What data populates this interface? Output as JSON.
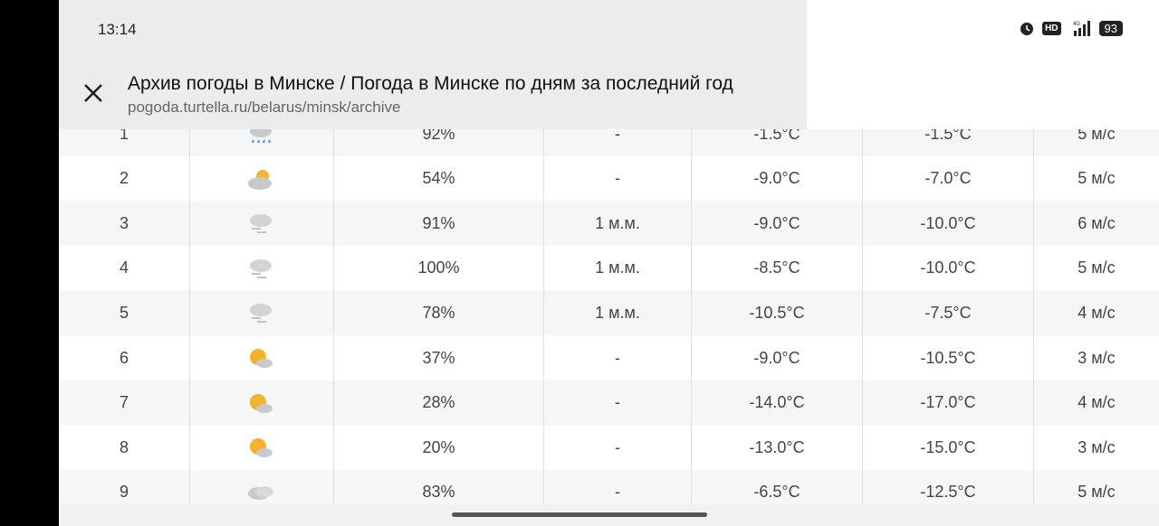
{
  "status_bar": {
    "time": "13:14",
    "icons": [
      "alarm-icon",
      "hd-icon",
      "4g-signal-icon"
    ],
    "battery": "93"
  },
  "browser": {
    "title": "Архив погоды в Минске / Погода в Минске по дням за последний год",
    "url": "pogoda.turtella.ru/belarus/minsk/archive"
  },
  "rows": [
    {
      "day": "1",
      "icon": "rain",
      "humidity": "92%",
      "precip": "-",
      "t1": "-1.5°C",
      "t2": "-1.5°C",
      "wind": "5 м/с"
    },
    {
      "day": "2",
      "icon": "sun-cloud",
      "humidity": "54%",
      "precip": "-",
      "t1": "-9.0°C",
      "t2": "-7.0°C",
      "wind": "5 м/с"
    },
    {
      "day": "3",
      "icon": "snow",
      "humidity": "91%",
      "precip": "1 м.м.",
      "t1": "-9.0°C",
      "t2": "-10.0°C",
      "wind": "6 м/с"
    },
    {
      "day": "4",
      "icon": "snow",
      "humidity": "100%",
      "precip": "1 м.м.",
      "t1": "-8.5°C",
      "t2": "-10.0°C",
      "wind": "5 м/с"
    },
    {
      "day": "5",
      "icon": "snow",
      "humidity": "78%",
      "precip": "1 м.м.",
      "t1": "-10.5°C",
      "t2": "-7.5°C",
      "wind": "4 м/с"
    },
    {
      "day": "6",
      "icon": "sun-small-cloud",
      "humidity": "37%",
      "precip": "-",
      "t1": "-9.0°C",
      "t2": "-10.5°C",
      "wind": "3 м/с"
    },
    {
      "day": "7",
      "icon": "sun-small-cloud",
      "humidity": "28%",
      "precip": "-",
      "t1": "-14.0°C",
      "t2": "-17.0°C",
      "wind": "4 м/с"
    },
    {
      "day": "8",
      "icon": "sun-small-cloud",
      "humidity": "20%",
      "precip": "-",
      "t1": "-13.0°C",
      "t2": "-15.0°C",
      "wind": "3 м/с"
    },
    {
      "day": "9",
      "icon": "cloudy",
      "humidity": "83%",
      "precip": "-",
      "t1": "-6.5°C",
      "t2": "-12.5°C",
      "wind": "5 м/с"
    }
  ]
}
